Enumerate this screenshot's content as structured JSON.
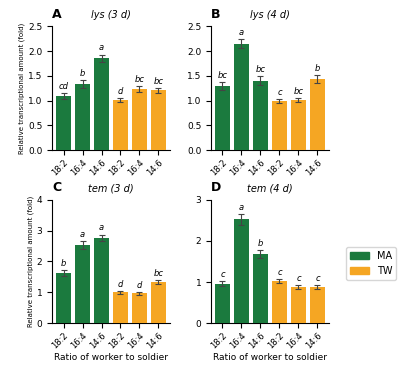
{
  "chart_data": [
    {
      "type": "bar",
      "title": "A",
      "subtitle": "lys (3 d)",
      "categories": [
        "18:2",
        "16:4",
        "14:6",
        "18:2",
        "16:4",
        "14:6"
      ],
      "series": [
        {
          "name": "MA",
          "color": "#1b7a3e",
          "values": [
            1.1,
            1.33,
            1.85,
            null,
            null,
            null
          ],
          "errors": [
            0.06,
            0.08,
            0.08,
            null,
            null,
            null
          ]
        },
        {
          "name": "TW",
          "color": "#f5a623",
          "values": [
            null,
            null,
            null,
            1.01,
            1.23,
            1.21
          ],
          "errors": [
            null,
            null,
            null,
            0.04,
            0.06,
            0.05
          ]
        }
      ],
      "annotations": [
        "cd",
        "b",
        "a",
        "d",
        "bc",
        "bc"
      ],
      "y_label": "Relative transcriptional amount (fold)",
      "ylim": [
        0,
        2.5
      ],
      "yticks": [
        0.0,
        0.5,
        1.0,
        1.5,
        2.0,
        2.5
      ]
    },
    {
      "type": "bar",
      "title": "B",
      "subtitle": "lys (4 d)",
      "categories": [
        "18:2",
        "16:4",
        "14:6",
        "18:2",
        "16:4",
        "14:6"
      ],
      "series": [
        {
          "name": "MA",
          "color": "#1b7a3e",
          "values": [
            1.3,
            2.15,
            1.4,
            null,
            null,
            null
          ],
          "errors": [
            0.08,
            0.09,
            0.09,
            null,
            null,
            null
          ]
        },
        {
          "name": "TW",
          "color": "#f5a623",
          "values": [
            null,
            null,
            null,
            1.0,
            1.01,
            1.43
          ],
          "errors": [
            null,
            null,
            null,
            0.04,
            0.04,
            0.08
          ]
        }
      ],
      "annotations": [
        "bc",
        "a",
        "bc",
        "c",
        "bc",
        "b"
      ],
      "ylim": [
        0,
        2.5
      ],
      "yticks": [
        0.0,
        0.5,
        1.0,
        1.5,
        2.0,
        2.5
      ]
    },
    {
      "type": "bar",
      "title": "C",
      "subtitle": "tem (3 d)",
      "categories": [
        "18:2",
        "16:4",
        "14:6",
        "18:2",
        "16:4",
        "14:6"
      ],
      "series": [
        {
          "name": "MA",
          "color": "#1b7a3e",
          "values": [
            1.63,
            2.52,
            2.77,
            null,
            null,
            null
          ],
          "errors": [
            0.09,
            0.13,
            0.1,
            null,
            null,
            null
          ]
        },
        {
          "name": "TW",
          "color": "#f5a623",
          "values": [
            null,
            null,
            null,
            1.0,
            0.97,
            1.33
          ],
          "errors": [
            null,
            null,
            null,
            0.04,
            0.04,
            0.07
          ]
        }
      ],
      "annotations": [
        "b",
        "a",
        "a",
        "d",
        "d",
        "bc"
      ],
      "x_label": "Ratio of worker to soldier",
      "y_label": "Relative transcriptional amount (fold)",
      "ylim": [
        0,
        4.0
      ],
      "yticks": [
        0,
        1,
        2,
        3,
        4
      ]
    },
    {
      "type": "bar",
      "title": "D",
      "subtitle": "tem (4 d)",
      "categories": [
        "18:2",
        "16:4",
        "14:6",
        "18:2",
        "16:4",
        "14:6"
      ],
      "series": [
        {
          "name": "MA",
          "color": "#1b7a3e",
          "values": [
            0.96,
            2.52,
            1.68,
            null,
            null,
            null
          ],
          "errors": [
            0.06,
            0.13,
            0.1,
            null,
            null,
            null
          ]
        },
        {
          "name": "TW",
          "color": "#f5a623",
          "values": [
            null,
            null,
            null,
            1.03,
            0.88,
            0.88
          ],
          "errors": [
            null,
            null,
            null,
            0.05,
            0.04,
            0.04
          ]
        }
      ],
      "annotations": [
        "c",
        "a",
        "b",
        "c",
        "c",
        "c"
      ],
      "x_label": "Ratio of worker to soldier",
      "ylim": [
        0,
        3.0
      ],
      "yticks": [
        0,
        1,
        2,
        3
      ],
      "legend": "center right"
    }
  ]
}
